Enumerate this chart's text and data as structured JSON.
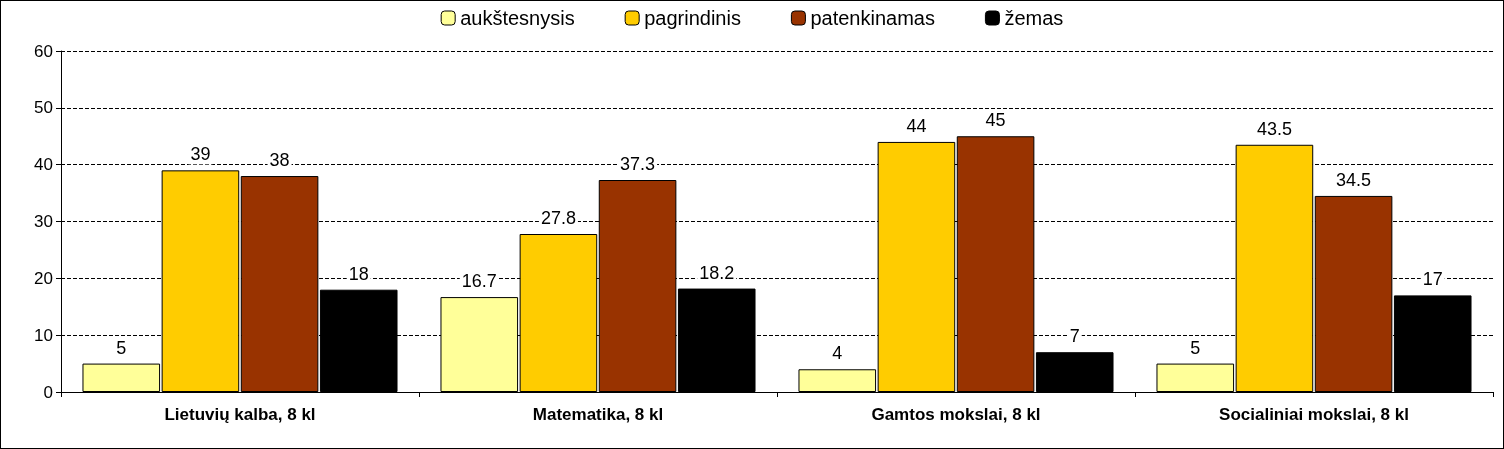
{
  "chart_data": {
    "type": "bar",
    "categories": [
      "Lietuvių kalba, 8 kl",
      "Matematika, 8 kl",
      "Gamtos mokslai, 8 kl",
      "Socialiniai mokslai, 8 kl"
    ],
    "series": [
      {
        "name": "aukštesnysis",
        "color": "#ffff99",
        "values": [
          5,
          16.7,
          4,
          5
        ]
      },
      {
        "name": "pagrindinis",
        "color": "#ffcc00",
        "values": [
          39,
          27.8,
          44,
          43.5
        ]
      },
      {
        "name": "patenkinamas",
        "color": "#993300",
        "values": [
          38,
          37.3,
          45,
          34.5
        ]
      },
      {
        "name": "žemas",
        "color": "#000000",
        "values": [
          18,
          18.2,
          7,
          17
        ]
      }
    ],
    "ylim": [
      0,
      60
    ],
    "yticks": [
      0,
      10,
      20,
      30,
      40,
      50,
      60
    ],
    "grid": "y",
    "legend": "top",
    "data_labels": true
  }
}
